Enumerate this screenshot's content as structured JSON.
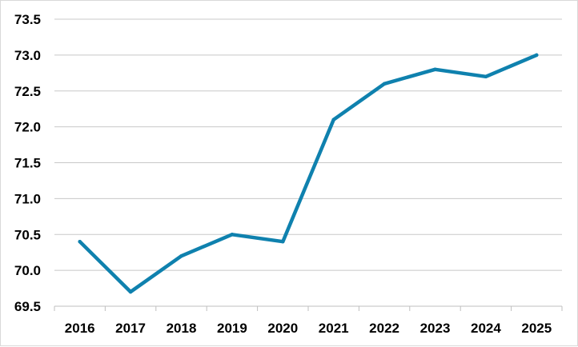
{
  "chart_data": {
    "type": "line",
    "categories": [
      "2016",
      "2017",
      "2018",
      "2019",
      "2020",
      "2021",
      "2022",
      "2023",
      "2024",
      "2025"
    ],
    "series": [
      {
        "values": [
          70.4,
          69.7,
          70.2,
          70.5,
          70.4,
          72.1,
          72.6,
          72.8,
          72.7,
          73.0
        ]
      }
    ],
    "y_ticks": [
      "69.5",
      "70.0",
      "70.5",
      "71.0",
      "71.5",
      "72.0",
      "72.5",
      "73.0",
      "73.5"
    ],
    "ylim": [
      69.5,
      73.5
    ],
    "grid": true,
    "legend": "none",
    "title": "",
    "xlabel": "",
    "ylabel": "",
    "colors": {
      "line": "#0f81ae",
      "grid": "#c8c8c8",
      "axis": "#bfbfbf"
    }
  }
}
